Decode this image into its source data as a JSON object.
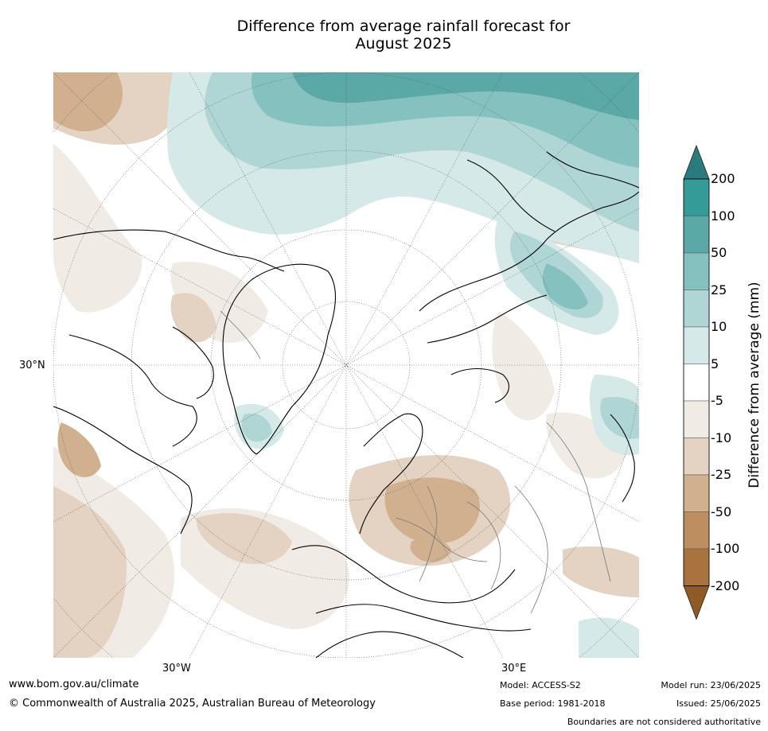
{
  "title": {
    "line1": "Difference from average rainfall forecast for",
    "line2": "August 2025"
  },
  "map": {
    "projection": "north-polar-stereographic",
    "graticule": "dotted",
    "lat_labels": [
      "30°N"
    ],
    "lon_labels": [
      "30°W",
      "30°E"
    ]
  },
  "colorbar": {
    "label": "Difference from average (mm)",
    "tick_labels": [
      "200",
      "100",
      "50",
      "25",
      "10",
      "5",
      "-5",
      "-10",
      "-25",
      "-50",
      "-100",
      "-200"
    ],
    "colors": {
      "above_200": "#2a7b7d",
      "100_200": "#349b99",
      "50_100": "#5aa9a7",
      "25_50": "#84c1bf",
      "10_25": "#afd6d5",
      "5_10": "#d5e9e8",
      "neutral": "#ffffff",
      "-10_-5": "#f1ebe5",
      "-25_-10": "#e4d2c2",
      "-50_-25": "#d0b08e",
      "-100_-50": "#bd8e60",
      "-200_-100": "#a8733e",
      "below_-200": "#8e5b24"
    }
  },
  "footer": {
    "website": "www.bom.gov.au/climate",
    "copyright": "© Commonwealth of Australia 2025, Australian Bureau of Meteorology",
    "model": "Model: ACCESS-S2",
    "base_period": "Base period: 1981-2018",
    "model_run": "Model run: 23/06/2025",
    "issued": "Issued: 25/06/2025",
    "disclaimer": "Boundaries are not considered authoritative"
  }
}
